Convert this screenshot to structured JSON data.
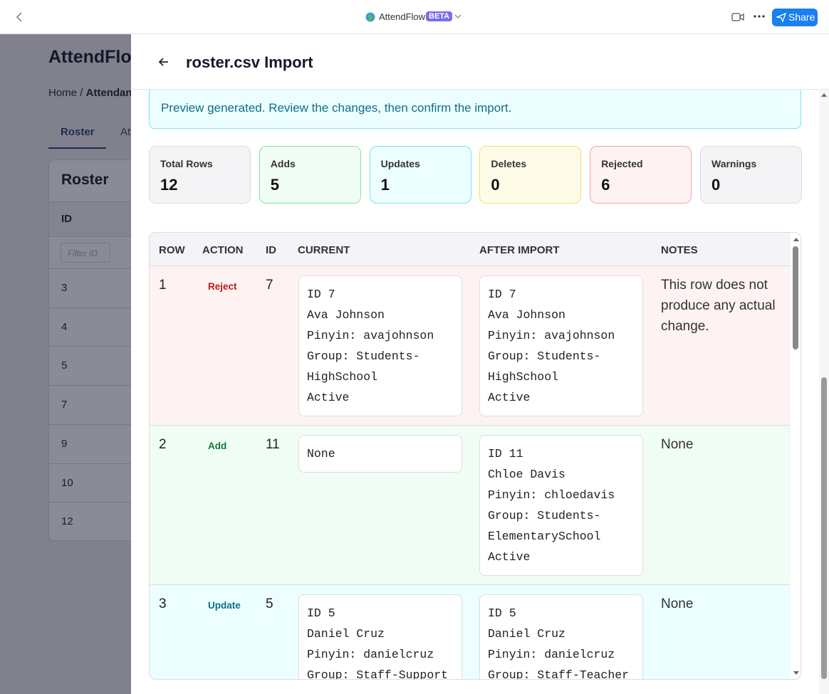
{
  "top_bar": {
    "app_name": "AttendFlow",
    "badge": "BETA",
    "share": "Share"
  },
  "background": {
    "title": "AttendFlow",
    "breadcrumb": {
      "items": [
        "Home",
        "Attendance"
      ],
      "separator": "/"
    },
    "tabs": [
      "Roster",
      "Attendance"
    ],
    "card_title": "Roster",
    "column": "ID",
    "filter_placeholder": "Filter ID",
    "rows": [
      3,
      4,
      5,
      7,
      9,
      10,
      12
    ]
  },
  "panel": {
    "title": "roster.csv Import",
    "alert": "Preview generated. Review the changes, then confirm the import.",
    "stats": [
      {
        "label": "Total Rows",
        "value": 12
      },
      {
        "label": "Adds",
        "value": 5
      },
      {
        "label": "Updates",
        "value": 1
      },
      {
        "label": "Deletes",
        "value": 0
      },
      {
        "label": "Rejected",
        "value": 6
      },
      {
        "label": "Warnings",
        "value": 0
      }
    ],
    "table": {
      "columns": [
        "ROW",
        "ACTION",
        "ID",
        "CURRENT",
        "AFTER IMPORT",
        "NOTES"
      ],
      "rows": [
        {
          "row": 1,
          "action": "Reject",
          "id": 7,
          "current": [
            "ID 7",
            "Ava Johnson",
            "Pinyin: avajohnson",
            "Group: Students-",
            "HighSchool",
            "Active"
          ],
          "after": [
            "ID 7",
            "Ava Johnson",
            "Pinyin: avajohnson",
            "Group: Students-",
            "HighSchool",
            "Active"
          ],
          "notes": "This row does not produce any actual change."
        },
        {
          "row": 2,
          "action": "Add",
          "id": 11,
          "current": [
            "None"
          ],
          "after": [
            "ID 11",
            "Chloe Davis",
            "Pinyin: chloedavis",
            "Group: Students-",
            "ElementarySchool",
            "Active"
          ],
          "notes": "None"
        },
        {
          "row": 3,
          "action": "Update",
          "id": 5,
          "current": [
            "ID 5",
            "Daniel Cruz",
            "Pinyin: danielcruz",
            "Group: Staff-Support"
          ],
          "after": [
            "ID 5",
            "Daniel Cruz",
            "Pinyin: danielcruz",
            "Group: Staff-Teacher"
          ],
          "notes": "None"
        }
      ]
    }
  }
}
